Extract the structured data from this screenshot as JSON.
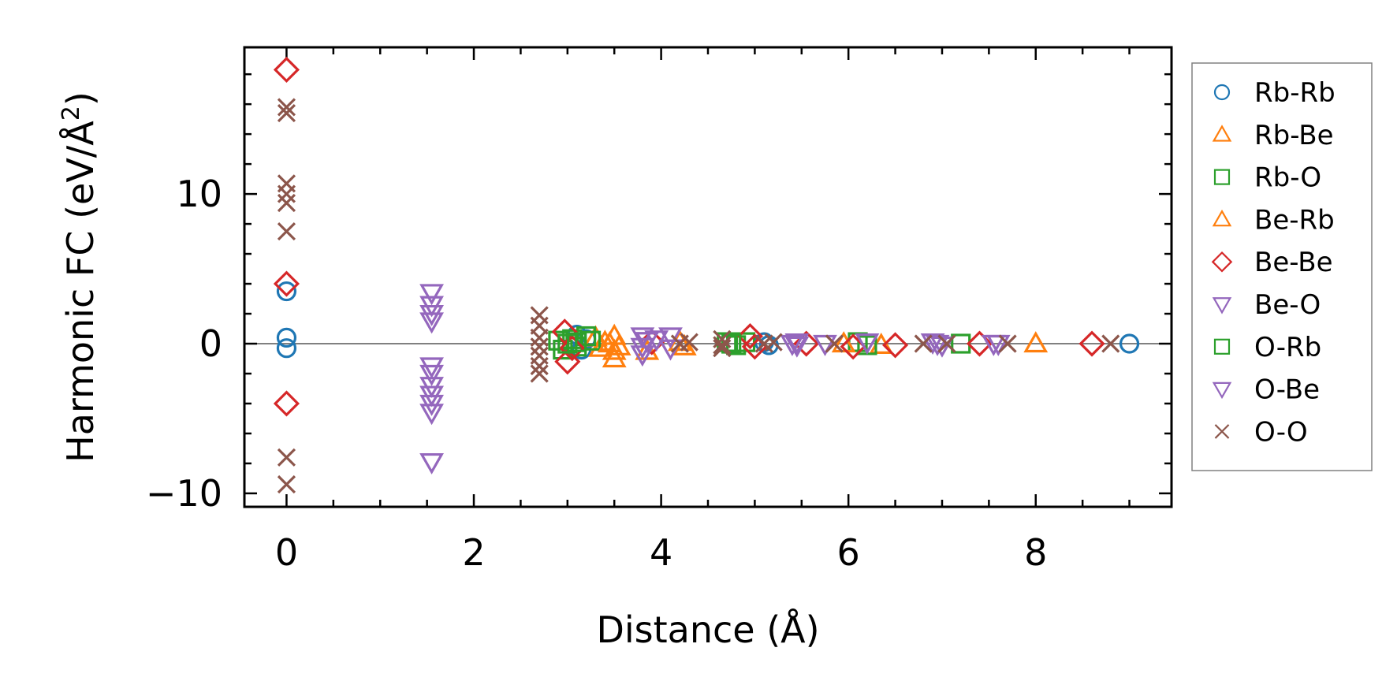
{
  "chart_data": {
    "type": "scatter",
    "title": "",
    "xlabel": "Distance (Å)",
    "ylabel_main": "Harmonic FC (eV/Å",
    "ylabel_sup": "2",
    "ylabel_close": ")",
    "xlim": [
      -0.45,
      9.45
    ],
    "ylim": [
      -10.9,
      19.8
    ],
    "xticks": [
      0,
      2,
      4,
      6,
      8
    ],
    "xtick_labels": [
      "0",
      "2",
      "4",
      "6",
      "8"
    ],
    "yticks": [
      -10,
      0,
      10
    ],
    "ytick_labels": [
      "−10",
      "0",
      "10"
    ],
    "xminor_step": 0.5,
    "ymminor_step": 2,
    "reference_line_y": 0,
    "grid": false,
    "legend_position": "outside-right",
    "series": [
      {
        "name": "Rb-Rb",
        "marker": "circle",
        "color": "#1f77b4",
        "points": [
          [
            0,
            3.5
          ],
          [
            0,
            0.4
          ],
          [
            0,
            -0.3
          ],
          [
            3.1,
            0.6
          ],
          [
            3.15,
            -0.4
          ],
          [
            3.2,
            0.3
          ],
          [
            5.1,
            0.1
          ],
          [
            5.15,
            -0.1
          ],
          [
            9.0,
            0.0
          ]
        ]
      },
      {
        "name": "Rb-Be",
        "marker": "triangle-up",
        "color": "#ff7f0e",
        "points": [
          [
            3.3,
            0.4
          ],
          [
            3.35,
            -0.3
          ],
          [
            3.4,
            0.1
          ],
          [
            3.5,
            -0.5
          ],
          [
            3.5,
            -1.0
          ],
          [
            3.5,
            0.5
          ],
          [
            3.85,
            -0.5
          ],
          [
            4.25,
            -0.2
          ],
          [
            6.35,
            -0.1
          ],
          [
            8.0,
            0.0
          ]
        ]
      },
      {
        "name": "Rb-O",
        "marker": "square",
        "color": "#2ca02c",
        "points": [
          [
            2.9,
            0.2
          ],
          [
            2.95,
            -0.4
          ],
          [
            3.05,
            0.3
          ],
          [
            3.1,
            -0.2
          ],
          [
            3.2,
            0.5
          ],
          [
            3.25,
            0.2
          ],
          [
            4.7,
            0.1
          ],
          [
            4.8,
            -0.1
          ],
          [
            4.9,
            0.1
          ],
          [
            6.1,
            0.1
          ],
          [
            6.2,
            -0.1
          ],
          [
            7.2,
            0.0
          ]
        ]
      },
      {
        "name": "Be-Rb",
        "marker": "triangle-up",
        "color": "#ff7f0e",
        "points": [
          [
            3.45,
            0.0
          ],
          [
            3.55,
            -0.2
          ],
          [
            4.2,
            0.1
          ],
          [
            5.95,
            0.0
          ]
        ]
      },
      {
        "name": "Be-Be",
        "marker": "diamond",
        "color": "#d62728",
        "points": [
          [
            0,
            18.3
          ],
          [
            0,
            4.0
          ],
          [
            0,
            -4.0
          ],
          [
            2.97,
            0.8
          ],
          [
            3.0,
            -1.2
          ],
          [
            3.05,
            -0.3
          ],
          [
            3.9,
            0.1
          ],
          [
            4.95,
            0.5
          ],
          [
            5.0,
            -0.2
          ],
          [
            5.55,
            0.0
          ],
          [
            6.05,
            -0.2
          ],
          [
            6.5,
            -0.1
          ],
          [
            7.4,
            0.0
          ],
          [
            8.6,
            0.0
          ]
        ]
      },
      {
        "name": "Be-O",
        "marker": "triangle-down",
        "color": "#9467bd",
        "points": [
          [
            1.55,
            3.4
          ],
          [
            1.55,
            2.6
          ],
          [
            1.55,
            2.0
          ],
          [
            1.55,
            1.5
          ],
          [
            1.55,
            -1.5
          ],
          [
            1.55,
            -2.0
          ],
          [
            1.55,
            -2.8
          ],
          [
            1.55,
            -3.4
          ],
          [
            1.55,
            -4.0
          ],
          [
            1.55,
            -4.6
          ],
          [
            1.55,
            -7.9
          ],
          [
            3.8,
            0.5
          ],
          [
            3.8,
            -0.2
          ],
          [
            3.8,
            -0.7
          ],
          [
            3.95,
            0.3
          ],
          [
            4.1,
            0.5
          ],
          [
            4.1,
            -0.3
          ],
          [
            5.45,
            0.1
          ],
          [
            5.45,
            -0.1
          ],
          [
            5.75,
            0.0
          ],
          [
            6.2,
            0.1
          ],
          [
            6.9,
            0.1
          ],
          [
            7.0,
            -0.1
          ],
          [
            7.55,
            0.0
          ],
          [
            7.6,
            0.0
          ]
        ]
      },
      {
        "name": "O-Rb",
        "marker": "square",
        "color": "#2ca02c",
        "points": [
          [
            3.0,
            0.0
          ],
          [
            3.1,
            0.1
          ],
          [
            4.75,
            0.0
          ]
        ]
      },
      {
        "name": "O-Be",
        "marker": "triangle-down",
        "color": "#9467bd",
        "points": [
          [
            3.85,
            0.2
          ],
          [
            5.4,
            0.0
          ],
          [
            6.95,
            0.0
          ]
        ]
      },
      {
        "name": "O-O",
        "marker": "x",
        "color": "#8c564b",
        "points": [
          [
            0,
            15.8
          ],
          [
            0,
            15.4
          ],
          [
            0,
            10.7
          ],
          [
            0,
            10.0
          ],
          [
            0,
            9.4
          ],
          [
            0,
            7.5
          ],
          [
            0,
            -7.6
          ],
          [
            0,
            -9.4
          ],
          [
            2.7,
            1.9
          ],
          [
            2.7,
            1.2
          ],
          [
            2.7,
            0.4
          ],
          [
            2.7,
            -0.2
          ],
          [
            2.7,
            -0.8
          ],
          [
            2.7,
            -1.5
          ],
          [
            2.7,
            -2.0
          ],
          [
            4.2,
            0.0
          ],
          [
            4.3,
            0.1
          ],
          [
            4.65,
            0.3
          ],
          [
            4.65,
            -0.1
          ],
          [
            4.65,
            -0.3
          ],
          [
            5.1,
            0.0
          ],
          [
            5.2,
            0.1
          ],
          [
            5.85,
            0.0
          ],
          [
            6.8,
            0.0
          ],
          [
            7.05,
            0.0
          ],
          [
            7.7,
            0.0
          ],
          [
            8.8,
            0.0
          ]
        ]
      }
    ]
  }
}
